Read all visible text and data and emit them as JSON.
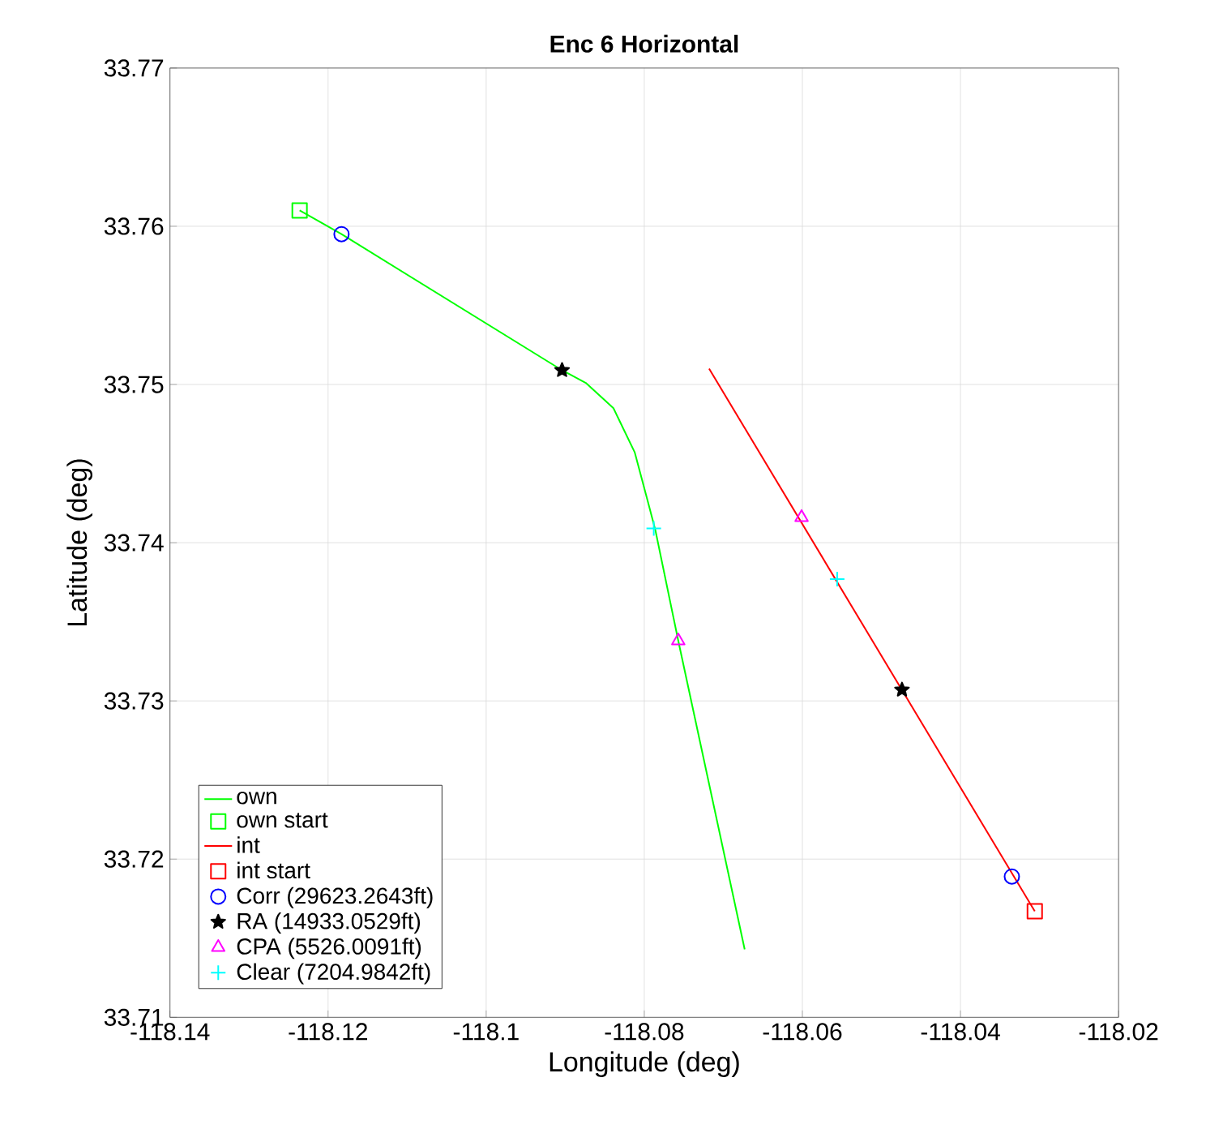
{
  "chart_data": {
    "type": "line",
    "title": "Enc 6 Horizontal",
    "xlabel": "Longitude (deg)",
    "ylabel": "Latitude (deg)",
    "xlim": [
      -118.14,
      -118.02
    ],
    "ylim": [
      33.71,
      33.77
    ],
    "xticks": [
      -118.14,
      -118.12,
      -118.1,
      -118.08,
      -118.06,
      -118.04,
      -118.02
    ],
    "yticks": [
      33.71,
      33.72,
      33.73,
      33.74,
      33.75,
      33.76,
      33.77
    ],
    "grid": true,
    "legend": "bottom left",
    "series": [
      {
        "name": "own",
        "color": "#00ff00",
        "marker": "none",
        "x": [
          -118.1236,
          -118.1183,
          -118.0904,
          -118.0874,
          -118.0839,
          -118.0812,
          -118.0796,
          -118.0786,
          -118.0757,
          -118.0673
        ],
        "values": [
          33.761,
          33.7595,
          33.7509,
          33.7501,
          33.7485,
          33.7457,
          33.7427,
          33.7408,
          33.7338,
          33.7143
        ]
      },
      {
        "name": "own start",
        "type": "scatter",
        "color": "#00ff00",
        "marker": "square",
        "x": [
          -118.1236
        ],
        "values": [
          33.761
        ]
      },
      {
        "name": "int",
        "color": "#ff0000",
        "marker": "none",
        "x": [
          -118.0718,
          -118.0306
        ],
        "values": [
          33.751,
          33.7167
        ]
      },
      {
        "name": "int start",
        "type": "scatter",
        "color": "#ff0000",
        "marker": "square",
        "x": [
          -118.0306
        ],
        "values": [
          33.7167
        ]
      },
      {
        "name": "Corr (29623.2643ft)",
        "type": "scatter",
        "color": "#0000ff",
        "marker": "circle",
        "x": [
          -118.1183,
          -118.0335
        ],
        "values": [
          33.7595,
          33.7189
        ]
      },
      {
        "name": "RA (14933.0529ft)",
        "type": "scatter",
        "color": "#000000",
        "marker": "star",
        "x": [
          -118.0904,
          -118.0474
        ],
        "values": [
          33.7509,
          33.7307
        ]
      },
      {
        "name": "CPA (5526.0091ft)",
        "type": "scatter",
        "color": "#ff00ff",
        "marker": "triangle",
        "x": [
          -118.0757,
          -118.0601
        ],
        "values": [
          33.7338,
          33.7416
        ]
      },
      {
        "name": "Clear (7204.9842ft)",
        "type": "scatter",
        "color": "#00ffff",
        "marker": "cross",
        "x": [
          -118.0788,
          -118.0556
        ],
        "values": [
          33.7409,
          33.7377
        ]
      }
    ]
  }
}
